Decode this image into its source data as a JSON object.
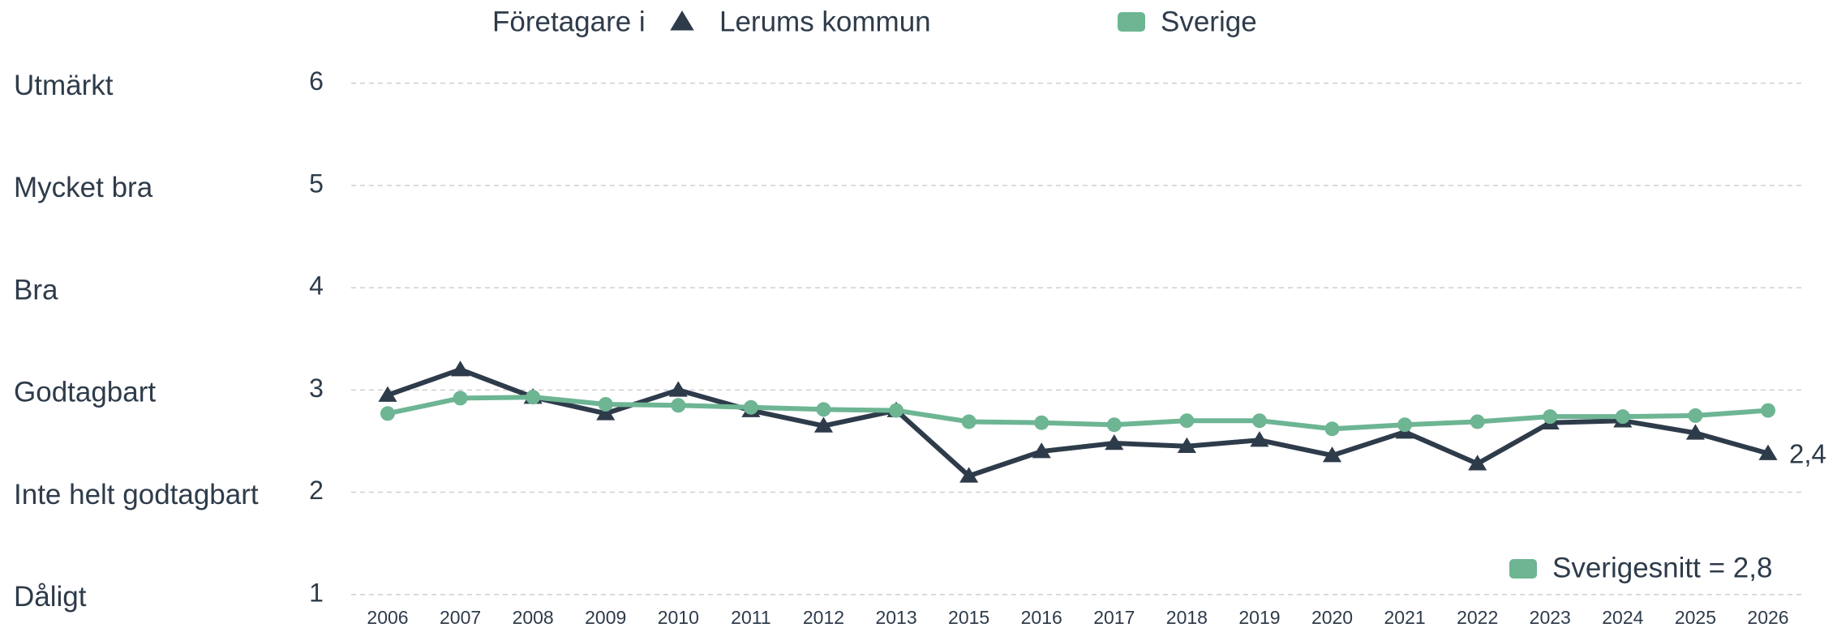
{
  "chart_data": {
    "type": "line",
    "legend_prefix": "Företagare i",
    "categories": [
      "2006",
      "2007",
      "2008",
      "2009",
      "2010",
      "2011",
      "2012",
      "2013",
      "2015",
      "2016",
      "2017",
      "2018",
      "2019",
      "2020",
      "2021",
      "2022",
      "2023",
      "2024",
      "2025",
      "2026"
    ],
    "series": [
      {
        "name": "Lerums kommun",
        "color": "#2e3b4a",
        "marker": "triangle",
        "values": [
          2.95,
          3.2,
          2.93,
          2.77,
          3.0,
          2.8,
          2.65,
          2.8,
          2.16,
          2.4,
          2.48,
          2.45,
          2.51,
          2.36,
          2.59,
          2.28,
          2.68,
          2.7,
          2.58,
          2.38
        ],
        "value_labels": [
          null,
          null,
          null,
          null,
          null,
          null,
          null,
          null,
          null,
          null,
          null,
          null,
          null,
          null,
          null,
          null,
          null,
          null,
          null,
          "2,4"
        ]
      },
      {
        "name": "Sverige",
        "color": "#6db593",
        "marker": "circle",
        "values": [
          2.77,
          2.92,
          2.93,
          2.86,
          2.85,
          2.83,
          2.81,
          2.8,
          2.69,
          2.68,
          2.66,
          2.7,
          2.7,
          2.62,
          2.66,
          2.69,
          2.74,
          2.74,
          2.75,
          2.8
        ]
      }
    ],
    "ylim": [
      1,
      6
    ],
    "yticks": [
      1,
      2,
      3,
      4,
      5,
      6
    ],
    "ytick_names": [
      "Dåligt",
      "Inte helt godtagbart",
      "Godtagbart",
      "Bra",
      "Mycket bra",
      "Utmärkt"
    ],
    "grid": true,
    "annotation": "Sverigesnitt = 2,8",
    "annotation_color": "#6db593"
  }
}
